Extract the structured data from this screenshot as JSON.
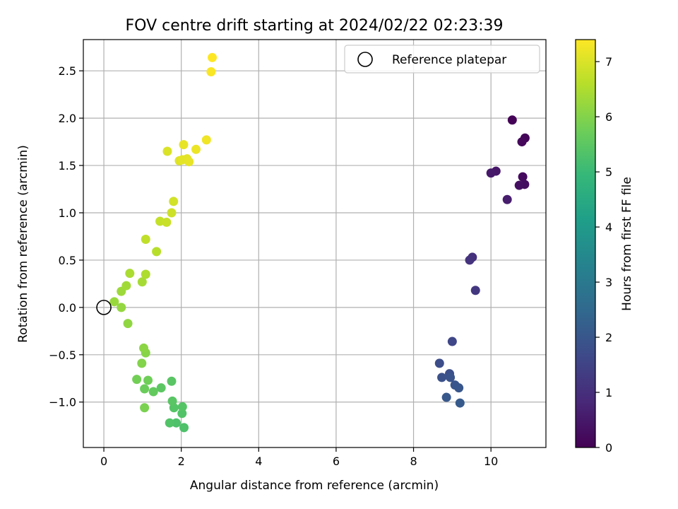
{
  "chart_data": {
    "type": "scatter",
    "title": "FOV centre drift starting at 2024/02/22 02:23:39",
    "xlabel": "Angular distance from reference (arcmin)",
    "ylabel": "Rotation from reference (arcmin)",
    "xlim": [
      -0.53,
      11.42
    ],
    "ylim": [
      -1.48,
      2.83
    ],
    "xticks": [
      0,
      2,
      4,
      6,
      8,
      10
    ],
    "yticks": [
      -1.0,
      -0.5,
      0.0,
      0.5,
      1.0,
      1.5,
      2.0,
      2.5
    ],
    "xtick_labels": [
      "0",
      "2",
      "4",
      "6",
      "8",
      "10"
    ],
    "ytick_labels": [
      "−1.0",
      "−0.5",
      "0.0",
      "0.5",
      "1.0",
      "1.5",
      "2.0",
      "2.5"
    ],
    "grid": true,
    "colormap": "viridis",
    "colormap_stops": [
      "#440154",
      "#482878",
      "#3e4989",
      "#31688e",
      "#26828e",
      "#1f9e89",
      "#35b779",
      "#6ece58",
      "#b5de2b",
      "#fde725"
    ],
    "colorbar": {
      "label": "Hours from first FF file",
      "range": [
        0,
        7.4
      ],
      "ticks": [
        0,
        1,
        2,
        3,
        4,
        5,
        6,
        7
      ],
      "tick_labels": [
        "0",
        "1",
        "2",
        "3",
        "4",
        "5",
        "6",
        "7"
      ]
    },
    "legend": {
      "position": "top-right",
      "entries": [
        {
          "label": "Reference platepar",
          "marker": "open-circle"
        }
      ]
    },
    "reference_point": {
      "x": 0,
      "y": 0
    },
    "points": [
      {
        "x": 10.55,
        "y": 1.98,
        "t": 0.05
      },
      {
        "x": 10.88,
        "y": 1.79,
        "t": 0.1
      },
      {
        "x": 10.8,
        "y": 1.75,
        "t": 0.15
      },
      {
        "x": 10.13,
        "y": 1.44,
        "t": 0.45
      },
      {
        "x": 10.0,
        "y": 1.42,
        "t": 0.5
      },
      {
        "x": 10.82,
        "y": 1.38,
        "t": 0.2
      },
      {
        "x": 10.87,
        "y": 1.3,
        "t": 0.25
      },
      {
        "x": 10.73,
        "y": 1.29,
        "t": 0.3
      },
      {
        "x": 10.42,
        "y": 1.14,
        "t": 0.6
      },
      {
        "x": 9.52,
        "y": 0.53,
        "t": 1.05
      },
      {
        "x": 9.45,
        "y": 0.5,
        "t": 1.1
      },
      {
        "x": 9.6,
        "y": 0.18,
        "t": 1.2
      },
      {
        "x": 9.0,
        "y": -0.36,
        "t": 1.6
      },
      {
        "x": 8.67,
        "y": -0.59,
        "t": 1.75
      },
      {
        "x": 8.93,
        "y": -0.7,
        "t": 1.8
      },
      {
        "x": 8.73,
        "y": -0.74,
        "t": 1.85
      },
      {
        "x": 8.95,
        "y": -0.74,
        "t": 1.9
      },
      {
        "x": 9.07,
        "y": -0.82,
        "t": 1.95
      },
      {
        "x": 9.17,
        "y": -0.85,
        "t": 2.0
      },
      {
        "x": 8.85,
        "y": -0.95,
        "t": 2.05
      },
      {
        "x": 9.2,
        "y": -1.01,
        "t": 2.1
      },
      {
        "x": 2.07,
        "y": -1.27,
        "t": 5.3
      },
      {
        "x": 1.87,
        "y": -1.22,
        "t": 5.3
      },
      {
        "x": 1.7,
        "y": -1.22,
        "t": 5.35
      },
      {
        "x": 2.02,
        "y": -1.12,
        "t": 5.35
      },
      {
        "x": 2.03,
        "y": -1.05,
        "t": 5.4
      },
      {
        "x": 1.81,
        "y": -1.06,
        "t": 5.4
      },
      {
        "x": 1.77,
        "y": -0.99,
        "t": 5.45
      },
      {
        "x": 1.75,
        "y": -0.78,
        "t": 5.45
      },
      {
        "x": 1.48,
        "y": -0.85,
        "t": 5.5
      },
      {
        "x": 1.28,
        "y": -0.89,
        "t": 5.6
      },
      {
        "x": 1.05,
        "y": -0.86,
        "t": 5.7
      },
      {
        "x": 1.14,
        "y": -0.77,
        "t": 5.75
      },
      {
        "x": 0.85,
        "y": -0.76,
        "t": 5.8
      },
      {
        "x": 1.05,
        "y": -1.06,
        "t": 5.9
      },
      {
        "x": 0.98,
        "y": -0.59,
        "t": 6.0
      },
      {
        "x": 1.08,
        "y": -0.48,
        "t": 6.05
      },
      {
        "x": 1.03,
        "y": -0.43,
        "t": 6.1
      },
      {
        "x": 0.62,
        "y": -0.17,
        "t": 6.15
      },
      {
        "x": 0.45,
        "y": 0.0,
        "t": 6.2
      },
      {
        "x": 0.27,
        "y": 0.06,
        "t": 6.25
      },
      {
        "x": 0.45,
        "y": 0.17,
        "t": 6.3
      },
      {
        "x": 0.58,
        "y": 0.23,
        "t": 6.35
      },
      {
        "x": 0.99,
        "y": 0.27,
        "t": 6.4
      },
      {
        "x": 0.67,
        "y": 0.36,
        "t": 6.45
      },
      {
        "x": 1.08,
        "y": 0.35,
        "t": 6.5
      },
      {
        "x": 1.36,
        "y": 0.59,
        "t": 6.6
      },
      {
        "x": 1.08,
        "y": 0.72,
        "t": 6.7
      },
      {
        "x": 1.45,
        "y": 0.91,
        "t": 6.75
      },
      {
        "x": 1.62,
        "y": 0.9,
        "t": 6.8
      },
      {
        "x": 1.75,
        "y": 1.0,
        "t": 6.85
      },
      {
        "x": 1.8,
        "y": 1.12,
        "t": 6.9
      },
      {
        "x": 1.64,
        "y": 1.65,
        "t": 7.0
      },
      {
        "x": 1.95,
        "y": 1.55,
        "t": 7.05
      },
      {
        "x": 2.03,
        "y": 1.56,
        "t": 7.1
      },
      {
        "x": 2.15,
        "y": 1.57,
        "t": 7.1
      },
      {
        "x": 2.2,
        "y": 1.54,
        "t": 7.15
      },
      {
        "x": 2.06,
        "y": 1.72,
        "t": 7.15
      },
      {
        "x": 2.38,
        "y": 1.67,
        "t": 7.2
      },
      {
        "x": 2.65,
        "y": 1.77,
        "t": 7.25
      },
      {
        "x": 2.77,
        "y": 2.49,
        "t": 7.35
      },
      {
        "x": 2.8,
        "y": 2.64,
        "t": 7.4
      }
    ]
  }
}
